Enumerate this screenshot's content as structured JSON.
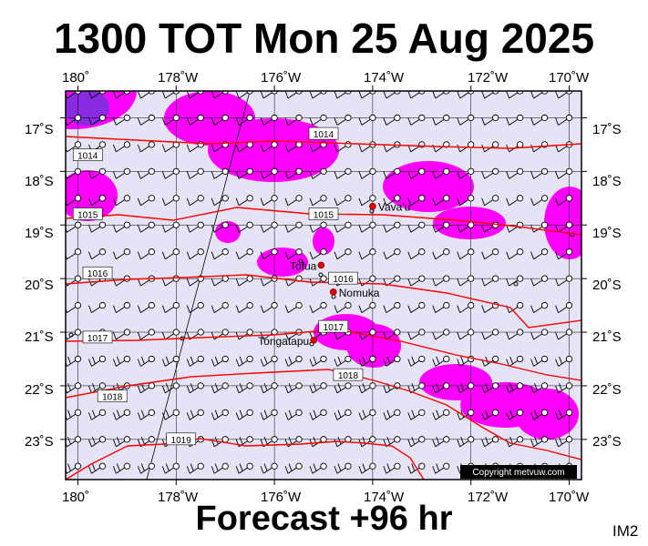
{
  "header": {
    "title": "1300 TOT Mon 25 Aug 2025"
  },
  "footer": {
    "forecast": "Forecast +96 hr",
    "code": "IM2"
  },
  "axes": {
    "lon_labels": [
      "180˚",
      "178˚W",
      "176˚W",
      "174˚W",
      "172˚W",
      "170˚W"
    ],
    "lat_labels": [
      "17˚S",
      "18˚S",
      "19˚S",
      "20˚S",
      "21˚S",
      "22˚S",
      "23˚S"
    ]
  },
  "map": {
    "lon_range": [
      -180.25,
      -169.75
    ],
    "lat_range": [
      -23.75,
      -16.5
    ],
    "background_color": "#e4e4f6",
    "precip_color": "#ff00ff",
    "precip_heavy_color": "#8a2be2",
    "isobar_color": "#ff0000",
    "copyright": "Copyright metvuw.com"
  },
  "places": [
    {
      "name": "Vava'u",
      "lon": -174.0,
      "lat": -18.65
    },
    {
      "name": "Tofua",
      "lon": -175.05,
      "lat": -19.75
    },
    {
      "name": "Nomuka",
      "lon": -174.8,
      "lat": -20.25
    },
    {
      "name": "Tongatapu",
      "lon": -175.2,
      "lat": -21.15
    }
  ],
  "isobars": [
    {
      "label": "1014",
      "lon": -175.0,
      "lat": -17.3
    },
    {
      "label": "1015",
      "lon": -175.0,
      "lat": -18.8
    },
    {
      "label": "1016",
      "lon": -174.6,
      "lat": -20.0
    },
    {
      "label": "1017",
      "lon": -174.8,
      "lat": -20.9
    },
    {
      "label": "1018",
      "lon": -174.5,
      "lat": -21.8
    },
    {
      "label": "1019",
      "lon": -177.9,
      "lat": -23.0
    },
    {
      "label": "1014",
      "lon": -179.8,
      "lat": -17.7
    },
    {
      "label": "1015",
      "lon": -179.8,
      "lat": -18.8
    },
    {
      "label": "1016",
      "lon": -179.6,
      "lat": -19.9
    },
    {
      "label": "1017",
      "lon": -179.6,
      "lat": -21.1
    },
    {
      "label": "1018",
      "lon": -179.3,
      "lat": -22.2
    }
  ]
}
